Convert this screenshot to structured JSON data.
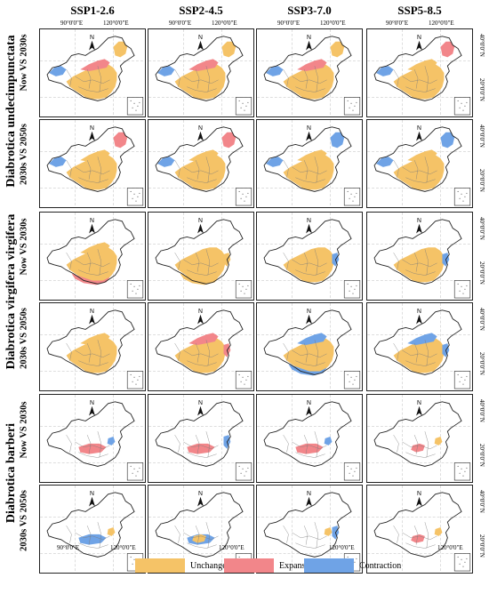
{
  "colors": {
    "unchanged": "#F5C367",
    "expansion": "#F2868A",
    "contraction": "#6FA3E6",
    "border": "#7a7a7a",
    "uncertain": "#b0b0b0"
  },
  "columns": [
    "SSP1-2.6",
    "SSP2-4.5",
    "SSP3-7.0",
    "SSP5-8.5"
  ],
  "species": [
    {
      "name": "Diabrotica undecimpunctata",
      "rows": [
        "Now VS 2030s",
        "2030s VS 2050s"
      ]
    },
    {
      "name": "Diabrotica virgifera virgifera",
      "rows": [
        "Now VS 2030s",
        "2030s VS 2050s"
      ]
    },
    {
      "name": "Diabrotica barberi",
      "rows": [
        "Now VS 2030s",
        "2030s VS 2050s"
      ]
    }
  ],
  "axis": {
    "lon_top": [
      "90°0'0\"E",
      "120°0'0\"E"
    ],
    "lon_bottom": [
      "90°0'0\"E",
      "120°0'0\"E"
    ],
    "lat": [
      "40°0'0\"N",
      "20°0'0\"N"
    ]
  },
  "north_label": "N",
  "legend": [
    {
      "key": "unchanged",
      "label": "Unchanged"
    },
    {
      "key": "expansion",
      "label": "Expansion"
    },
    {
      "key": "contraction",
      "label": "Contraction"
    }
  ]
}
